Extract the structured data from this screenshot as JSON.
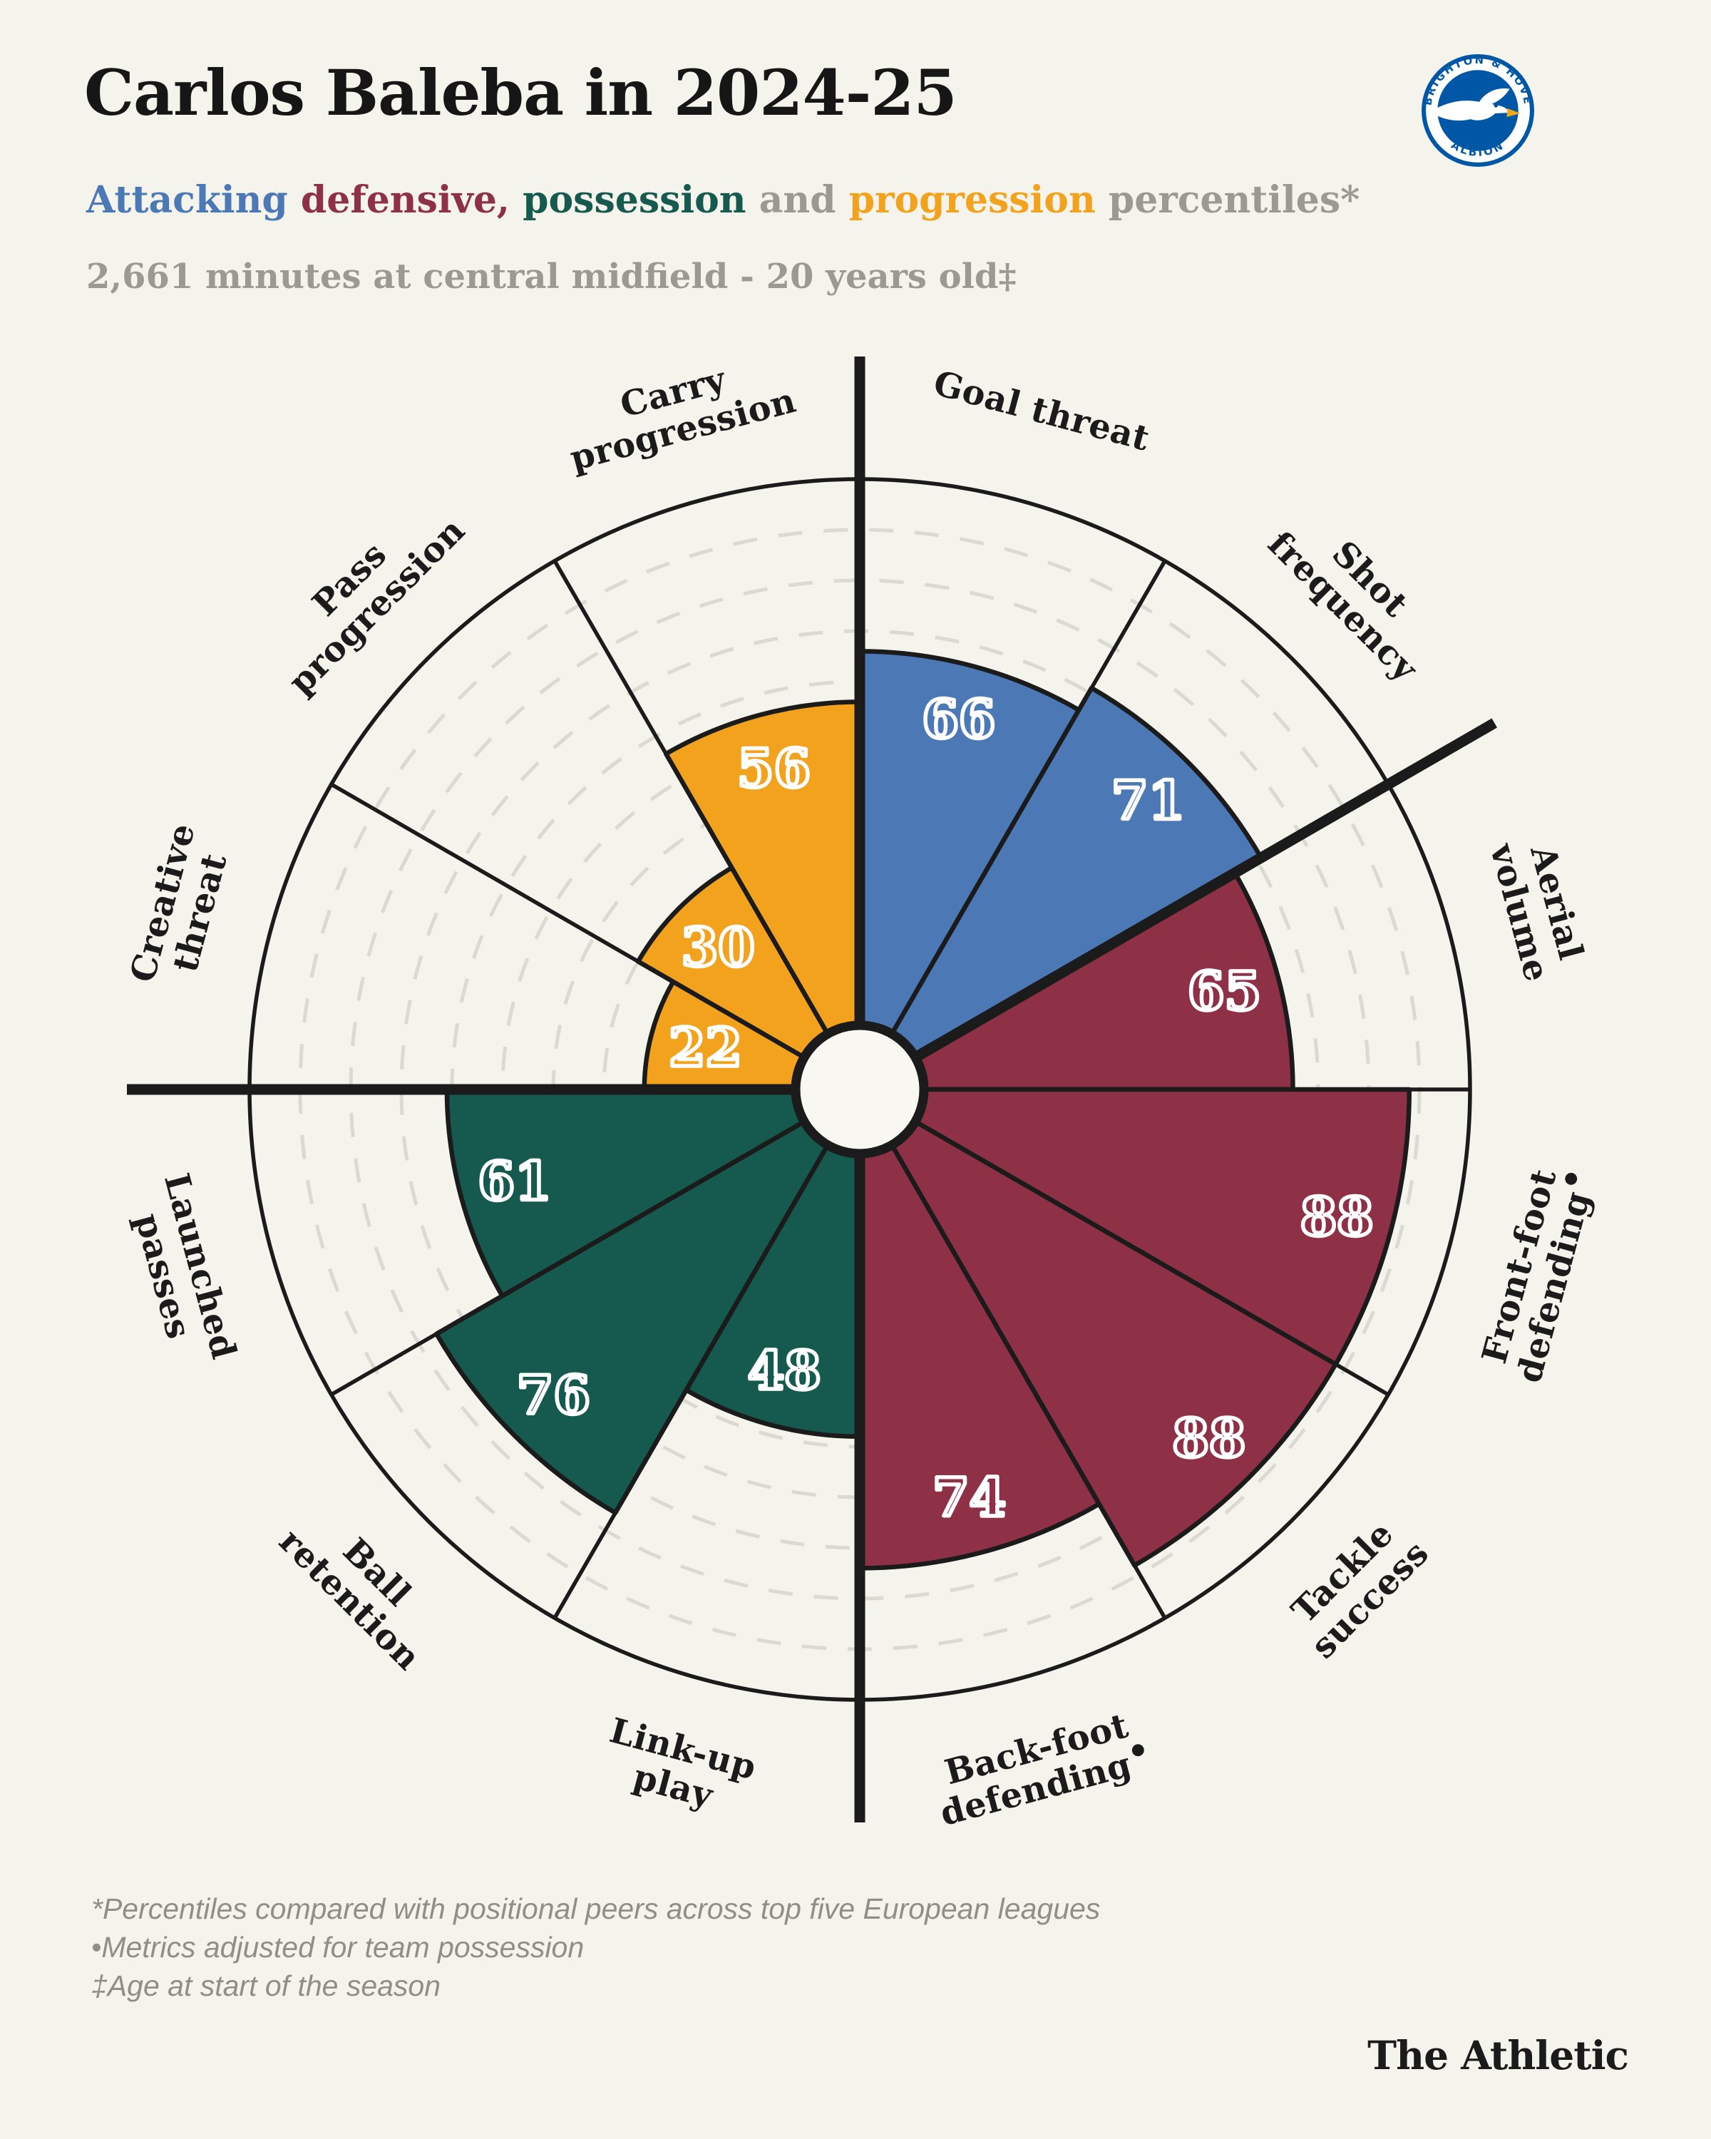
{
  "header": {
    "title": "Carlos Baleba in 2024-25",
    "subtitle_parts": [
      {
        "text": "Attacking ",
        "color": "#4C79B6"
      },
      {
        "text": "defensive",
        "color": "#8E3146"
      },
      {
        "text": ", ",
        "color": "#8E3146"
      },
      {
        "text": "possession",
        "color": "#16594F"
      },
      {
        "text": " and ",
        "color": "#9C9992"
      },
      {
        "text": "progression",
        "color": "#F3A21E"
      },
      {
        "text": " percentiles*",
        "color": "#9C9992"
      }
    ],
    "meta": "2,661 minutes at central midfield - 20 years old‡"
  },
  "badge": {
    "club": "Brighton & Hove Albion",
    "top_text": "BRIGHTON & HOVE",
    "bottom_text": "ALBION",
    "blue": "#0057A5",
    "beak_yellow": "#F0A818"
  },
  "chart_data": {
    "type": "pizza",
    "unit": "percentile",
    "axis_range": [
      0,
      100
    ],
    "grid": {
      "ring_interval": 10,
      "style": "dashed",
      "ring_color": "#DBD9D0"
    },
    "ink_color": "#1B1B1B",
    "hub_color": "#F8F7F1",
    "value_text_style": "double-outline-white",
    "groups": {
      "attacking": {
        "label": "Attacking",
        "color": "#4C79B6"
      },
      "defensive": {
        "label": "Defensive",
        "color": "#8E3146"
      },
      "possession": {
        "label": "Possession",
        "color": "#16594F"
      },
      "progression": {
        "label": "Progression",
        "color": "#F3A21E"
      }
    },
    "separator_angles_deg": [
      0,
      60,
      180,
      270
    ],
    "categories": [
      "Goal threat",
      "Shot frequency",
      "Aerial volume",
      "Front-foot defending•",
      "Tackle success",
      "Back-foot defending•",
      "Link-up play",
      "Ball retention",
      "Launched passes",
      "Creative threat",
      "Pass progression",
      "Carry progression"
    ],
    "values": [
      66,
      71,
      65,
      88,
      88,
      74,
      48,
      76,
      61,
      22,
      30,
      56
    ],
    "slices": [
      {
        "label_lines": [
          "Goal threat"
        ],
        "value": 66,
        "group": "attacking"
      },
      {
        "label_lines": [
          "Shot",
          "frequency"
        ],
        "value": 71,
        "group": "attacking"
      },
      {
        "label_lines": [
          "Aerial",
          "volume"
        ],
        "value": 65,
        "group": "defensive"
      },
      {
        "label_lines": [
          "Front-foot",
          "defending•"
        ],
        "value": 88,
        "group": "defensive"
      },
      {
        "label_lines": [
          "Tackle",
          "success"
        ],
        "value": 88,
        "group": "defensive"
      },
      {
        "label_lines": [
          "Back-foot",
          "defending•"
        ],
        "value": 74,
        "group": "defensive"
      },
      {
        "label_lines": [
          "Link-up",
          "play"
        ],
        "value": 48,
        "group": "possession"
      },
      {
        "label_lines": [
          "Ball",
          "retention"
        ],
        "value": 76,
        "group": "possession"
      },
      {
        "label_lines": [
          "Launched",
          "passes"
        ],
        "value": 61,
        "group": "possession"
      },
      {
        "label_lines": [
          "Creative",
          "threat"
        ],
        "value": 22,
        "group": "progression"
      },
      {
        "label_lines": [
          "Pass",
          "progression"
        ],
        "value": 30,
        "group": "progression"
      },
      {
        "label_lines": [
          "Carry",
          "progression"
        ],
        "value": 56,
        "group": "progression"
      }
    ]
  },
  "footnotes": [
    "*Percentiles compared with positional peers across top five European leagues",
    "•Metrics adjusted for team possession",
    "‡Age at start of the season"
  ],
  "footer": {
    "logo": "The Athletic"
  }
}
